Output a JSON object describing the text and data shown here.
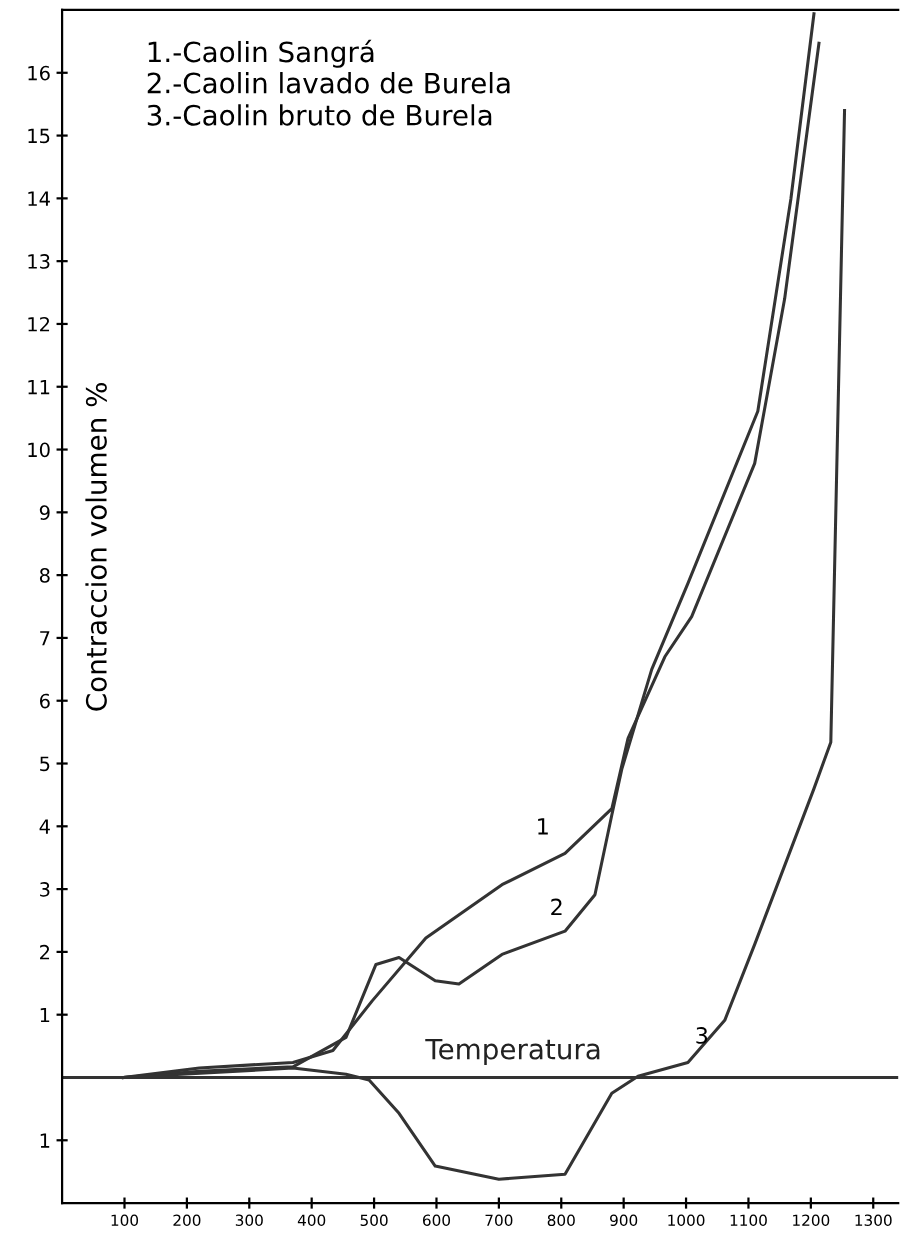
{
  "chart_data": {
    "type": "line",
    "ylabel": "Contraccion volumen %",
    "series": [
      {
        "name": "1",
        "color": "#333333",
        "x": [
          98,
          220,
          370,
          434,
          497,
          583,
          705,
          806,
          881,
          907,
          966,
          1009,
          1110,
          1158,
          1213
        ],
        "values": [
          0,
          0.15,
          0.24,
          0.43,
          1.22,
          2.22,
          3.07,
          3.57,
          4.28,
          5.4,
          6.7,
          7.34,
          9.78,
          12.4,
          16.47
        ]
      },
      {
        "name": "2",
        "color": "#333333",
        "x": [
          98,
          220,
          370,
          455,
          503,
          540,
          598,
          636,
          705,
          806,
          854,
          881,
          897,
          945,
          1003,
          1115,
          1168,
          1205
        ],
        "values": [
          0,
          0.1,
          0.17,
          0.64,
          1.8,
          1.91,
          1.54,
          1.49,
          1.96,
          2.33,
          2.91,
          4.18,
          4.91,
          6.5,
          7.87,
          10.61,
          13.99,
          16.94
        ]
      },
      {
        "name": "3",
        "color": "#333333",
        "x": [
          98,
          370,
          455,
          492,
          540,
          598,
          700,
          806,
          838,
          881,
          923,
          1003,
          1062,
          1110,
          1205,
          1232,
          1254
        ],
        "values": [
          0,
          0.15,
          0.05,
          -0.04,
          -0.57,
          -1.41,
          -1.62,
          -1.54,
          -0.99,
          -0.25,
          0.02,
          0.24,
          0.91,
          2.12,
          4.6,
          5.34,
          15.4
        ]
      }
    ],
    "xlim": [
      0,
      1340
    ],
    "xticks": [
      100,
      200,
      300,
      400,
      500,
      600,
      700,
      800,
      900,
      1000,
      1100,
      1200,
      1300
    ],
    "ylim": [
      -2,
      17
    ],
    "yticks": [
      {
        "value": -1,
        "label": "1"
      },
      1,
      2,
      3,
      4,
      5,
      6,
      7,
      8,
      9,
      10,
      11,
      12,
      13,
      14,
      15,
      16
    ],
    "ref_lines": [
      {
        "axis": "y",
        "value": 0,
        "label": "Temperatura",
        "color": "#333333"
      }
    ],
    "annotations": [
      "1.-Caolin Sangrá",
      "2.-Caolin lavado de Burela",
      "3.-Caolin bruto de Burela"
    ],
    "grid": false,
    "legend": false,
    "marker": "none",
    "line_style": "solid"
  }
}
